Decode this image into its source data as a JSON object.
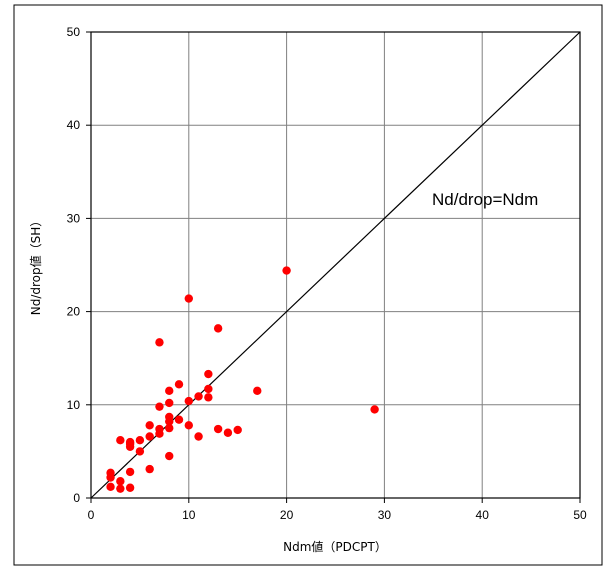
{
  "chart_data": {
    "type": "scatter",
    "xlabel": "Ndm値（PDCPT）",
    "ylabel": "Nd/drop値（SH）",
    "xlim": [
      0,
      50
    ],
    "ylim": [
      0,
      50
    ],
    "xticks": [
      0,
      10,
      20,
      30,
      40,
      50
    ],
    "yticks": [
      0,
      10,
      20,
      30,
      40,
      50
    ],
    "grid": true,
    "marker_color": "#ff0000",
    "reference_line": {
      "label": "Nd/drop=Ndm",
      "from": [
        0,
        0
      ],
      "to": [
        50,
        50
      ]
    },
    "points": [
      {
        "x": 2,
        "y": 1.2
      },
      {
        "x": 2,
        "y": 2.2
      },
      {
        "x": 2,
        "y": 2.7
      },
      {
        "x": 3,
        "y": 1.0
      },
      {
        "x": 3,
        "y": 1.8
      },
      {
        "x": 3,
        "y": 6.2
      },
      {
        "x": 4,
        "y": 1.1
      },
      {
        "x": 4,
        "y": 2.8
      },
      {
        "x": 4,
        "y": 5.5
      },
      {
        "x": 4,
        "y": 5.8
      },
      {
        "x": 4,
        "y": 6.0
      },
      {
        "x": 5,
        "y": 5.0
      },
      {
        "x": 5,
        "y": 6.2
      },
      {
        "x": 6,
        "y": 3.1
      },
      {
        "x": 6,
        "y": 6.6
      },
      {
        "x": 6,
        "y": 7.8
      },
      {
        "x": 7,
        "y": 6.9
      },
      {
        "x": 7,
        "y": 7.4
      },
      {
        "x": 7,
        "y": 9.8
      },
      {
        "x": 7,
        "y": 16.7
      },
      {
        "x": 8,
        "y": 4.5
      },
      {
        "x": 8,
        "y": 7.5
      },
      {
        "x": 8,
        "y": 8.2
      },
      {
        "x": 8,
        "y": 8.7
      },
      {
        "x": 8,
        "y": 10.2
      },
      {
        "x": 8,
        "y": 11.5
      },
      {
        "x": 9,
        "y": 8.4
      },
      {
        "x": 9,
        "y": 12.2
      },
      {
        "x": 10,
        "y": 7.8
      },
      {
        "x": 10,
        "y": 10.4
      },
      {
        "x": 10,
        "y": 21.4
      },
      {
        "x": 11,
        "y": 6.6
      },
      {
        "x": 11,
        "y": 10.9
      },
      {
        "x": 12,
        "y": 10.8
      },
      {
        "x": 12,
        "y": 11.7
      },
      {
        "x": 12,
        "y": 13.3
      },
      {
        "x": 13,
        "y": 7.4
      },
      {
        "x": 13,
        "y": 18.2
      },
      {
        "x": 14,
        "y": 7.0
      },
      {
        "x": 15,
        "y": 7.3
      },
      {
        "x": 17,
        "y": 11.5
      },
      {
        "x": 20,
        "y": 24.4
      },
      {
        "x": 29,
        "y": 9.5
      }
    ]
  }
}
